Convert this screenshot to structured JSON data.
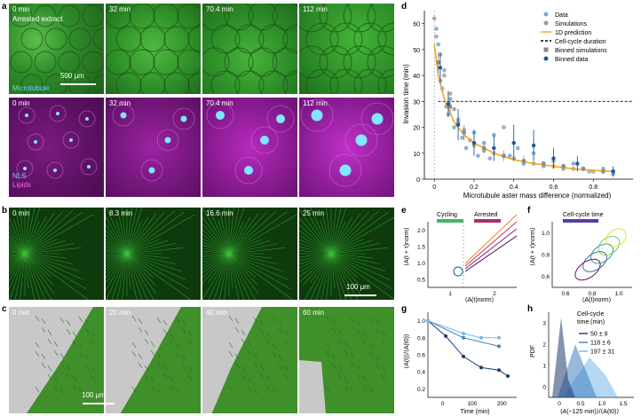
{
  "panels": {
    "a": {
      "letter": "a",
      "times": [
        "0 min",
        "32 min",
        "70.4 min",
        "112 min"
      ],
      "sub_label": "Arrested extract",
      "channel_top": "Microtubule",
      "channel_bottom_1": "NLS",
      "channel_bottom_2": "Lipids",
      "scale": "500 μm",
      "colors": {
        "green": "#3fa83a",
        "magenta": "#b81ec0",
        "cyan": "#7fe6ff"
      }
    },
    "b": {
      "letter": "b",
      "times": [
        "0 min",
        "8.3 min",
        "16.6 min",
        "25 min"
      ],
      "scale": "100 μm"
    },
    "c": {
      "letter": "c",
      "times": [
        "0 min",
        "20 min",
        "40 min",
        "60 min"
      ],
      "scale": "100 μm"
    },
    "d": {
      "letter": "d"
    },
    "e": {
      "letter": "e"
    },
    "f": {
      "letter": "f"
    },
    "g": {
      "letter": "g"
    },
    "h": {
      "letter": "h"
    }
  },
  "chart_data": [
    {
      "id": "d",
      "type": "scatter",
      "xlabel": "Microtubule aster mass difference (normalized)",
      "ylabel": "Invasion time (min)",
      "xlim": [
        -0.05,
        1.0
      ],
      "ylim": [
        0,
        65
      ],
      "xticks": [
        "0",
        "0.2",
        "0.4",
        "0.6",
        "0.8"
      ],
      "yticks": [
        "0",
        "10",
        "20",
        "30",
        "40",
        "50",
        "60"
      ],
      "legend": [
        "Data",
        "Simulations",
        "1D prediction",
        "Cell-cycle duration",
        "Binned simulations",
        "Binned data"
      ],
      "cell_cycle_duration": 30,
      "colors": {
        "data": "#2f6db0",
        "simulations": "#9a9a9a",
        "prediction": "#f2a81d",
        "binned_data": "#1f5799",
        "binned_sim": "#8a8a8a"
      },
      "data": [
        [
          0.01,
          58
        ],
        [
          0.02,
          52
        ],
        [
          0.02,
          45
        ],
        [
          0.03,
          38
        ],
        [
          0.04,
          35
        ],
        [
          0.05,
          42
        ],
        [
          0.06,
          28
        ],
        [
          0.07,
          25
        ],
        [
          0.08,
          31
        ],
        [
          0.1,
          20
        ],
        [
          0.12,
          23
        ],
        [
          0.14,
          16
        ],
        [
          0.16,
          12
        ],
        [
          0.2,
          18
        ],
        [
          0.22,
          9
        ],
        [
          0.25,
          14
        ],
        [
          0.28,
          8
        ],
        [
          0.3,
          17
        ],
        [
          0.35,
          20
        ],
        [
          0.38,
          9
        ],
        [
          0.42,
          12
        ],
        [
          0.45,
          6
        ],
        [
          0.5,
          10
        ],
        [
          0.55,
          5
        ],
        [
          0.6,
          7
        ],
        [
          0.65,
          4
        ],
        [
          0.7,
          6
        ],
        [
          0.78,
          3
        ],
        [
          0.85,
          4
        ],
        [
          0.9,
          2
        ]
      ],
      "simulations": [
        [
          0.0,
          62
        ],
        [
          0.01,
          55
        ],
        [
          0.03,
          48
        ],
        [
          0.05,
          40
        ],
        [
          0.08,
          33
        ],
        [
          0.1,
          27
        ],
        [
          0.12,
          22
        ],
        [
          0.15,
          19
        ],
        [
          0.18,
          15
        ],
        [
          0.2,
          13
        ],
        [
          0.25,
          11
        ],
        [
          0.3,
          10
        ],
        [
          0.35,
          9
        ],
        [
          0.4,
          8
        ],
        [
          0.45,
          7
        ],
        [
          0.5,
          6
        ],
        [
          0.55,
          6
        ],
        [
          0.6,
          5
        ],
        [
          0.65,
          5
        ],
        [
          0.7,
          4
        ],
        [
          0.75,
          4
        ],
        [
          0.8,
          3
        ],
        [
          0.85,
          3
        ],
        [
          0.9,
          3
        ]
      ],
      "prediction": [
        [
          0.0,
          52
        ],
        [
          0.02,
          40
        ],
        [
          0.05,
          31
        ],
        [
          0.1,
          22
        ],
        [
          0.15,
          17
        ],
        [
          0.2,
          14
        ],
        [
          0.3,
          10
        ],
        [
          0.4,
          7.5
        ],
        [
          0.5,
          6
        ],
        [
          0.6,
          5
        ],
        [
          0.7,
          4
        ],
        [
          0.8,
          3.4
        ],
        [
          0.9,
          3
        ]
      ],
      "binned_data": [
        [
          0.03,
          43,
          6
        ],
        [
          0.07,
          29,
          5
        ],
        [
          0.12,
          21,
          6
        ],
        [
          0.2,
          14,
          5
        ],
        [
          0.3,
          12,
          5
        ],
        [
          0.4,
          14,
          7
        ],
        [
          0.5,
          13,
          6
        ],
        [
          0.6,
          8,
          4
        ],
        [
          0.72,
          6,
          3
        ],
        [
          0.9,
          3,
          2
        ]
      ],
      "binned_sim": [
        [
          0.02,
          45,
          4
        ],
        [
          0.08,
          28,
          3
        ],
        [
          0.15,
          18,
          3
        ],
        [
          0.25,
          12,
          2
        ],
        [
          0.35,
          9,
          2
        ],
        [
          0.45,
          7,
          2
        ],
        [
          0.55,
          6,
          1
        ],
        [
          0.65,
          5,
          1
        ],
        [
          0.75,
          4,
          1
        ],
        [
          0.85,
          3,
          1
        ]
      ]
    },
    {
      "id": "e",
      "type": "line",
      "xlabel": "⟨A(t)norm⟩",
      "ylabel": "⟨A(t + τ)norm⟩",
      "xticks": [
        "1",
        "2"
      ],
      "yticks": [
        "0.5",
        "1.0",
        "1.5",
        "2.0"
      ],
      "legend": [
        "Cycling",
        "Arrested"
      ]
    },
    {
      "id": "f",
      "type": "line",
      "xlabel": "⟨A(t)norm⟩",
      "ylabel": "⟨A(t + τ)norm⟩",
      "xticks": [
        "0.6",
        "0.8",
        "1.0"
      ],
      "yticks": [
        "0.6",
        "0.8",
        "1.0"
      ],
      "legend": [
        "Cell-cycle time"
      ]
    },
    {
      "id": "g",
      "type": "line",
      "xlabel": "Time (min)",
      "ylabel": "⟨A(t)⟩/⟨A(t0)⟩",
      "xticks": [
        "0",
        "100",
        "200"
      ],
      "yticks": [
        "0.2",
        "0.4",
        "0.6",
        "0.8",
        "1.0"
      ],
      "series": [
        {
          "values": [
            [
              0,
              1.0
            ],
            [
              50,
              0.82
            ],
            [
              100,
              0.58
            ],
            [
              150,
              0.45
            ],
            [
              200,
              0.42
            ],
            [
              225,
              0.35
            ]
          ],
          "color": "#1f3b70"
        },
        {
          "values": [
            [
              0,
              1.0
            ],
            [
              100,
              0.8
            ],
            [
              200,
              0.7
            ]
          ],
          "color": "#3f7fc0"
        },
        {
          "values": [
            [
              0,
              1.0
            ],
            [
              100,
              0.85
            ],
            [
              150,
              0.8
            ],
            [
              200,
              0.8
            ]
          ],
          "color": "#7ab6e6"
        }
      ]
    },
    {
      "id": "h",
      "type": "area",
      "xlabel": "⟨A(−125 min)⟩/⟨A(t0)⟩",
      "ylabel": "PDF",
      "xticks": [
        "0",
        "0.5",
        "1.0",
        "1.5"
      ],
      "yticks": [
        "0",
        "1",
        "2",
        "3"
      ],
      "legend_title": "Cell-cycle time (min)",
      "series": [
        {
          "name": "50 ± 9",
          "color": "#1f3b70"
        },
        {
          "name": "118 ± 6",
          "color": "#3f7fc0"
        },
        {
          "name": "197 ± 31",
          "color": "#7ab6e6"
        }
      ]
    }
  ]
}
